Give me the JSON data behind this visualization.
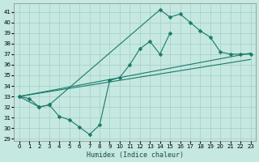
{
  "xlabel": "Humidex (Indice chaleur)",
  "xlim": [
    -0.5,
    23.5
  ],
  "ylim": [
    28.8,
    41.8
  ],
  "yticks": [
    29,
    30,
    31,
    32,
    33,
    34,
    35,
    36,
    37,
    38,
    39,
    40,
    41
  ],
  "xticks": [
    0,
    1,
    2,
    3,
    4,
    5,
    6,
    7,
    8,
    9,
    10,
    11,
    12,
    13,
    14,
    15,
    16,
    17,
    18,
    19,
    20,
    21,
    22,
    23
  ],
  "bg_color": "#c5e8e0",
  "grid_color": "#a8ccca",
  "line_color": "#1a7a6a",
  "line1_x": [
    0,
    1,
    2,
    3,
    4,
    5,
    6,
    7,
    8,
    9,
    10,
    11,
    12,
    13,
    14,
    15
  ],
  "line1_y": [
    33.0,
    32.8,
    32.0,
    32.2,
    31.1,
    30.8,
    30.1,
    29.4,
    30.3,
    34.5,
    34.8,
    36.0,
    37.5,
    38.2,
    37.0,
    39.0
  ],
  "line2_x": [
    0,
    2,
    3,
    14,
    15,
    16,
    17,
    18,
    19,
    20,
    21,
    22,
    23
  ],
  "line2_y": [
    33.0,
    32.0,
    32.2,
    41.2,
    40.5,
    40.8,
    40.0,
    39.2,
    38.6,
    37.2,
    37.0,
    37.0,
    37.0
  ],
  "line3_x": [
    0,
    23
  ],
  "line3_y": [
    33.0,
    37.1
  ],
  "line4_x": [
    0,
    23
  ],
  "line4_y": [
    33.0,
    36.5
  ],
  "markersize": 2.5,
  "tick_fontsize": 5.0,
  "xlabel_fontsize": 6.0
}
